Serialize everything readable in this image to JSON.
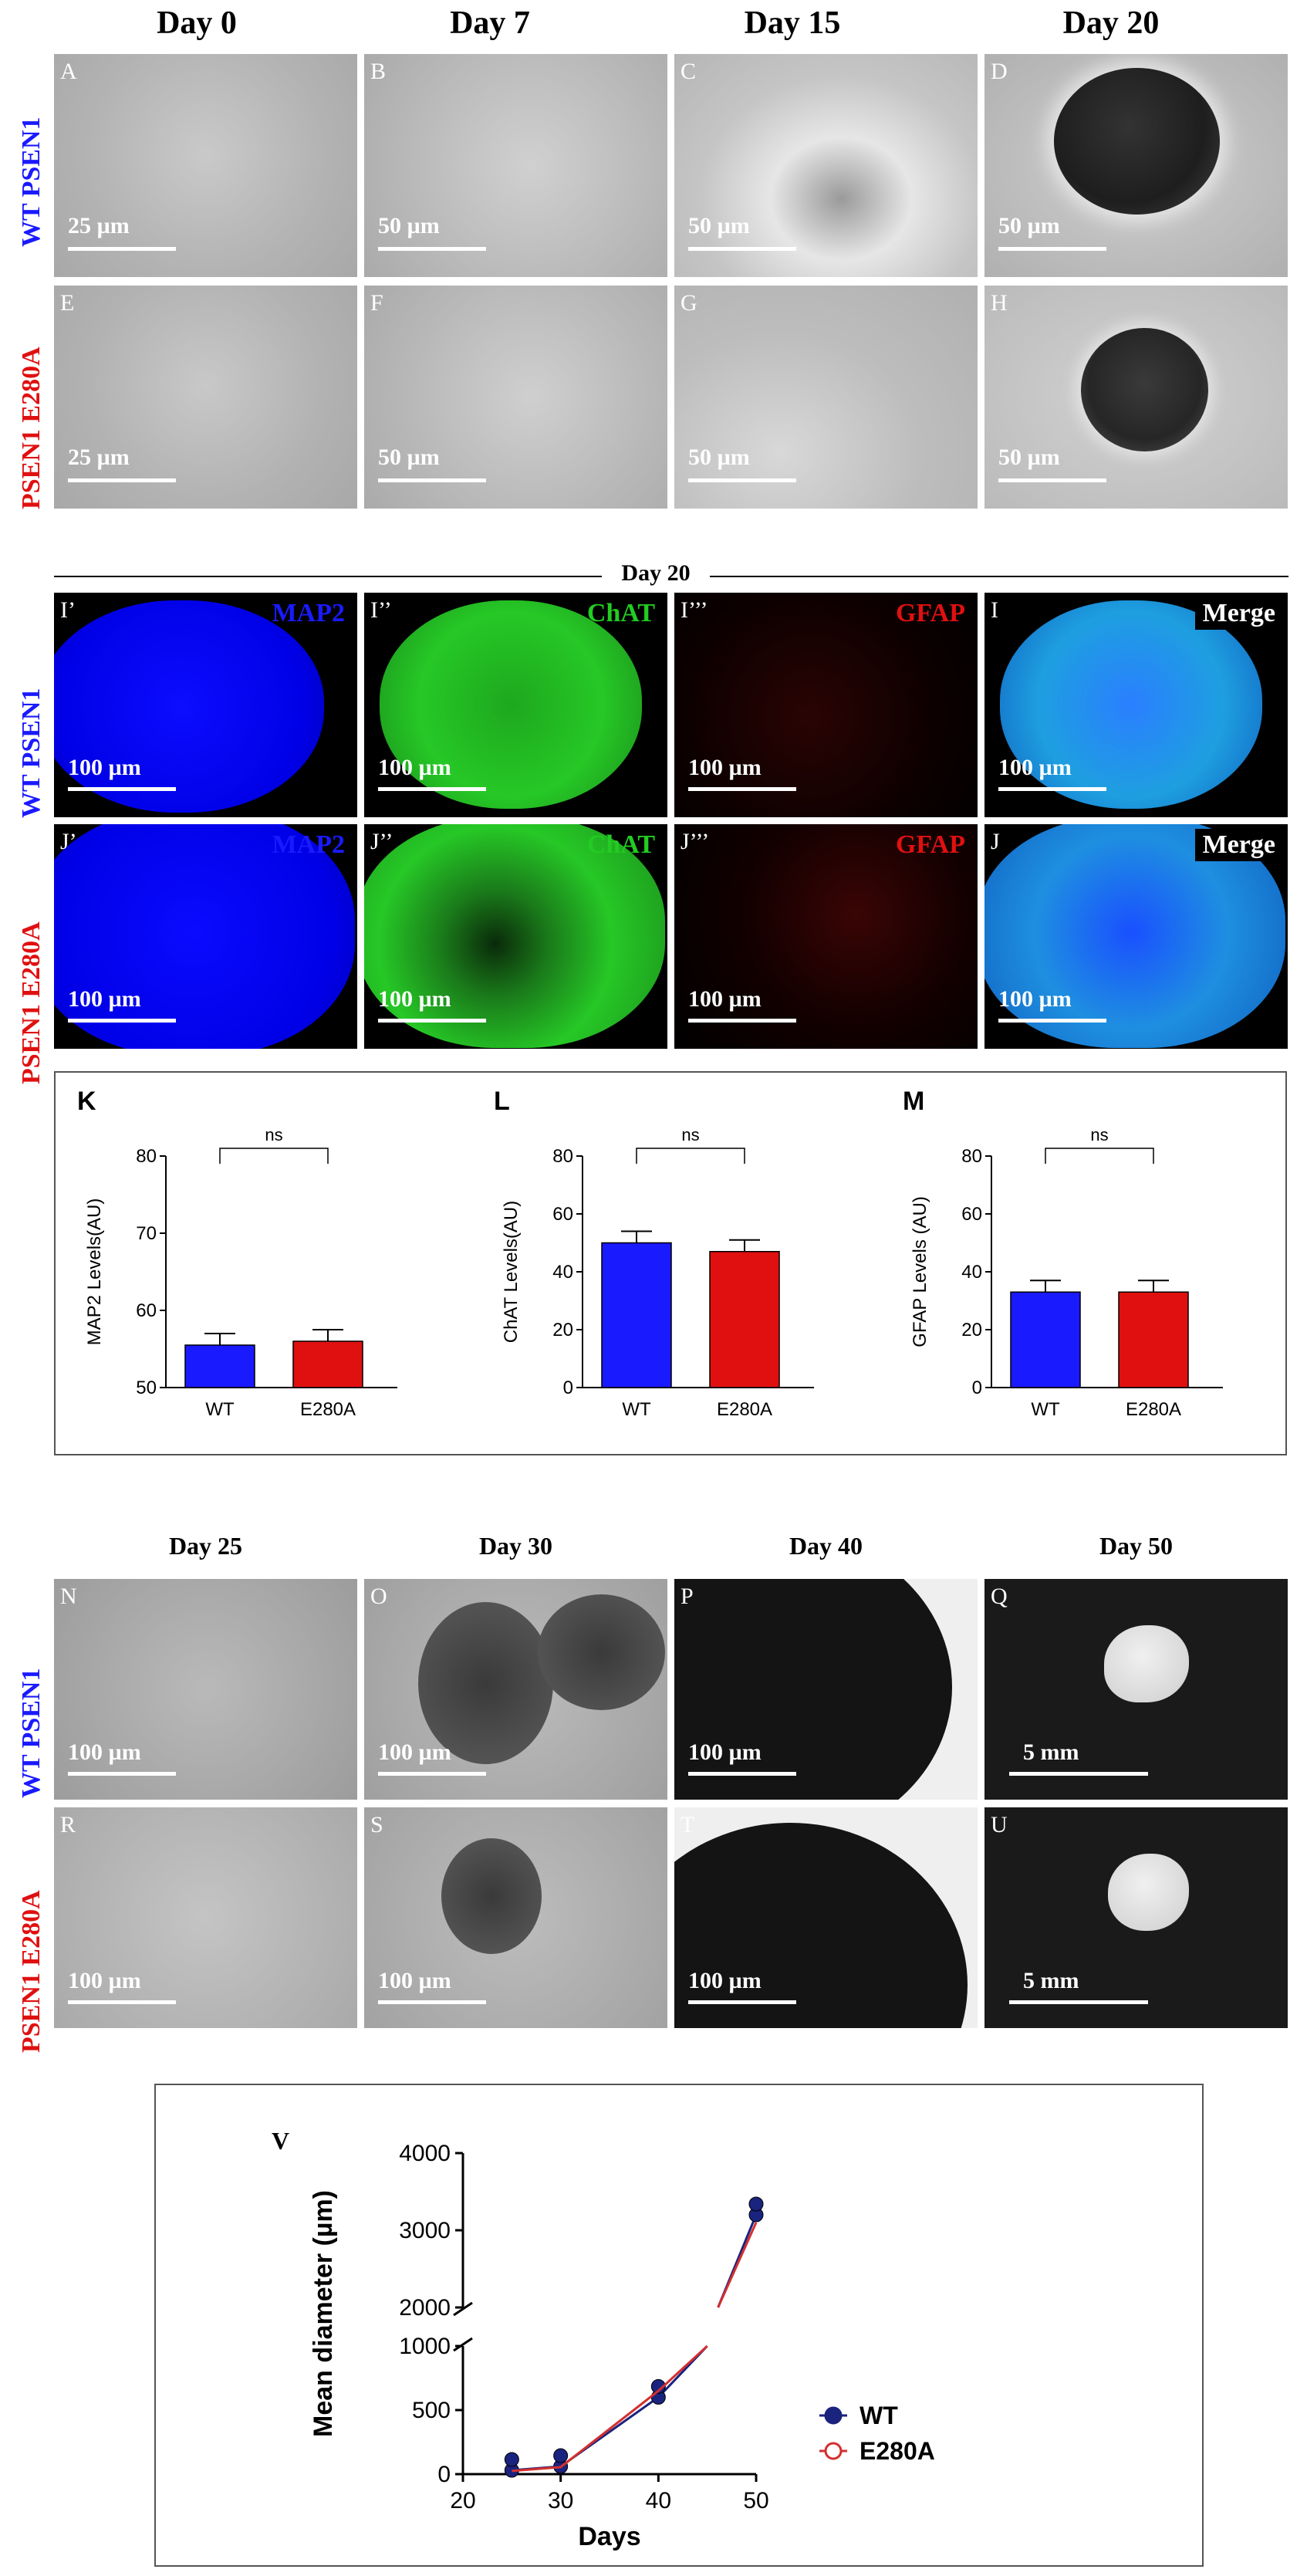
{
  "section1": {
    "columns": [
      "Day 0",
      "Day 7",
      "Day 15",
      "Day 20"
    ],
    "rows": [
      "WT PSEN1",
      "PSEN1 E280A"
    ],
    "row_colors": [
      "#1a1aff",
      "#e01010"
    ],
    "panels": [
      {
        "label": "A",
        "scale": "25 µm"
      },
      {
        "label": "B",
        "scale": "50 µm"
      },
      {
        "label": "C",
        "scale": "50 µm"
      },
      {
        "label": "D",
        "scale": "50 µm"
      },
      {
        "label": "E",
        "scale": "25 µm"
      },
      {
        "label": "F",
        "scale": "50 µm"
      },
      {
        "label": "G",
        "scale": "50 µm"
      },
      {
        "label": "H",
        "scale": "50 µm"
      }
    ]
  },
  "section2": {
    "title": "Day 20",
    "rows": [
      "WT PSEN1",
      "PSEN1 E280A"
    ],
    "panels": [
      {
        "label": "I’",
        "marker": "MAP2",
        "marker_color": "#1a1aff",
        "scale": "100 µm"
      },
      {
        "label": "I’’",
        "marker": "ChAT",
        "marker_color": "#22cc22",
        "scale": "100 µm"
      },
      {
        "label": "I’’’",
        "marker": "GFAP",
        "marker_color": "#e01010",
        "scale": "100 µm"
      },
      {
        "label": "I",
        "marker": "Merge",
        "marker_color": "#ffffff",
        "scale": "100 µm"
      },
      {
        "label": "J’",
        "marker": "MAP2",
        "marker_color": "#1a1aff",
        "scale": "100 µm"
      },
      {
        "label": "J’’",
        "marker": "ChAT",
        "marker_color": "#22cc22",
        "scale": "100 µm"
      },
      {
        "label": "J’’’",
        "marker": "GFAP",
        "marker_color": "#e01010",
        "scale": "100 µm"
      },
      {
        "label": "J",
        "marker": "Merge",
        "marker_color": "#ffffff",
        "scale": "100 µm"
      }
    ]
  },
  "chart_data": [
    {
      "type": "bar",
      "panel": "K",
      "categories": [
        "WT",
        "E280A"
      ],
      "values": [
        55.5,
        56
      ],
      "ylabel": "MAP2 Levels(AU)",
      "ylim": [
        50,
        80
      ],
      "yticks": [
        50,
        60,
        70,
        80
      ],
      "significance": "ns",
      "colors": [
        "#1a1aff",
        "#e01010"
      ]
    },
    {
      "type": "bar",
      "panel": "L",
      "categories": [
        "WT",
        "E280A"
      ],
      "values": [
        50,
        47
      ],
      "ylabel": "ChAT Levels(AU)",
      "ylim": [
        0,
        80
      ],
      "yticks": [
        0,
        20,
        40,
        60,
        80
      ],
      "significance": "ns",
      "colors": [
        "#1a1aff",
        "#e01010"
      ]
    },
    {
      "type": "bar",
      "panel": "M",
      "categories": [
        "WT",
        "E280A"
      ],
      "values": [
        33,
        33
      ],
      "ylabel": "GFAP Levels (AU)",
      "ylim": [
        0,
        80
      ],
      "yticks": [
        0,
        20,
        40,
        60,
        80
      ],
      "significance": "ns",
      "colors": [
        "#1a1aff",
        "#e01010"
      ]
    },
    {
      "type": "line",
      "panel": "V",
      "x": [
        25,
        30,
        40,
        50
      ],
      "series": [
        {
          "name": "WT",
          "values": [
            30,
            60,
            600,
            3200
          ],
          "color": "#1a237e"
        },
        {
          "name": "E280A",
          "values": [
            25,
            55,
            650,
            3100
          ],
          "color": "#d32f2f"
        }
      ],
      "xlabel": "Days",
      "ylabel": "Mean diameter (µm)",
      "xticks": [
        20,
        30,
        40,
        50
      ],
      "yticks_lower": [
        0,
        500,
        1000
      ],
      "yticks_upper": [
        2000,
        3000,
        4000
      ],
      "legend": "right"
    }
  ],
  "section3": {
    "columns": [
      "Day 25",
      "Day 30",
      "Day 40",
      "Day 50"
    ],
    "rows": [
      "WT PSEN1",
      "PSEN1 E280A"
    ],
    "panels": [
      {
        "label": "N",
        "scale": "100 µm"
      },
      {
        "label": "O",
        "scale": "100 µm"
      },
      {
        "label": "P",
        "scale": "100 µm"
      },
      {
        "label": "Q",
        "scale": "5 mm"
      },
      {
        "label": "R",
        "scale": "100 µm"
      },
      {
        "label": "S",
        "scale": "100 µm"
      },
      {
        "label": "T",
        "scale": "100 µm"
      },
      {
        "label": "U",
        "scale": "5 mm"
      }
    ]
  }
}
